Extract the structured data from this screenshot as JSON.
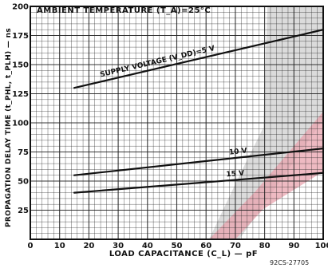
{
  "chart_data": {
    "type": "line",
    "title": "AMBIENT TEMPERATURE (T_A)=25°C",
    "xlabel": "LOAD CAPACITANCE (C_L) — pF",
    "ylabel": "PROPAGATION DELAY TIME (t_PHL, t_PLH) — ns",
    "xlim": [
      0,
      100
    ],
    "ylim": [
      0,
      200
    ],
    "x_ticks": [
      0,
      10,
      20,
      30,
      40,
      50,
      60,
      70,
      80,
      90,
      100
    ],
    "y_ticks": [
      25,
      50,
      75,
      100,
      125,
      150,
      175,
      200
    ],
    "grid": true,
    "series": [
      {
        "name": "SUPPLY VOLTAGE (V_DD)=5 V",
        "x": [
          15,
          100
        ],
        "y": [
          130,
          180
        ]
      },
      {
        "name": "10 V",
        "x": [
          15,
          100
        ],
        "y": [
          55,
          78
        ]
      },
      {
        "name": "15 V",
        "x": [
          15,
          100
        ],
        "y": [
          40,
          57
        ]
      }
    ]
  },
  "figure_code": "92CS-27705",
  "colors": {
    "ink": "#111111",
    "grid": "#222222",
    "accent_pink": "#e8a3ad",
    "accent_gray": "#bdbdbd"
  }
}
